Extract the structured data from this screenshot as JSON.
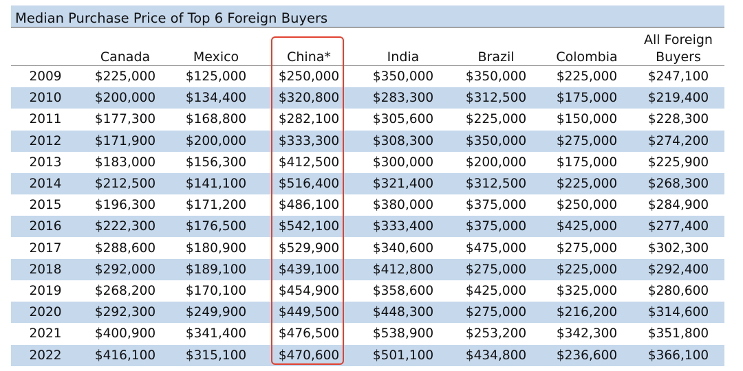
{
  "chart_data": {
    "type": "table",
    "title": "Median Purchase Price of Top 6 Foreign Buyers",
    "corner_label": "",
    "columns": [
      "Canada",
      "Mexico",
      "China*",
      "India",
      "Brazil",
      "Colombia",
      "All Foreign\nBuyers"
    ],
    "highlighted_column": "China*",
    "highlight_color": "#e2412f",
    "band_color": "#c5d8ec",
    "rows": [
      {
        "year": "2009",
        "values": [
          "$225,000",
          "$125,000",
          "$250,000",
          "$350,000",
          "$350,000",
          "$225,000",
          "$247,100"
        ]
      },
      {
        "year": "2010",
        "values": [
          "$200,000",
          "$134,400",
          "$320,800",
          "$283,300",
          "$312,500",
          "$175,000",
          "$219,400"
        ]
      },
      {
        "year": "2011",
        "values": [
          "$177,300",
          "$168,800",
          "$282,100",
          "$305,600",
          "$225,000",
          "$150,000",
          "$228,300"
        ]
      },
      {
        "year": "2012",
        "values": [
          "$171,900",
          "$200,000",
          "$333,300",
          "$308,300",
          "$350,000",
          "$275,000",
          "$274,200"
        ]
      },
      {
        "year": "2013",
        "values": [
          "$183,000",
          "$156,300",
          "$412,500",
          "$300,000",
          "$200,000",
          "$175,000",
          "$225,900"
        ]
      },
      {
        "year": "2014",
        "values": [
          "$212,500",
          "$141,100",
          "$516,400",
          "$321,400",
          "$312,500",
          "$225,000",
          "$268,300"
        ]
      },
      {
        "year": "2015",
        "values": [
          "$196,300",
          "$171,200",
          "$486,100",
          "$380,000",
          "$375,000",
          "$250,000",
          "$284,900"
        ]
      },
      {
        "year": "2016",
        "values": [
          "$222,300",
          "$176,500",
          "$542,100",
          "$333,400",
          "$375,000",
          "$425,000",
          "$277,400"
        ]
      },
      {
        "year": "2017",
        "values": [
          "$288,600",
          "$180,900",
          "$529,900",
          "$340,600",
          "$475,000",
          "$275,000",
          "$302,300"
        ]
      },
      {
        "year": "2018",
        "values": [
          "$292,000",
          "$189,100",
          "$439,100",
          "$412,800",
          "$275,000",
          "$225,000",
          "$292,400"
        ]
      },
      {
        "year": "2019",
        "values": [
          "$268,200",
          "$170,100",
          "$454,900",
          "$358,600",
          "$425,000",
          "$325,000",
          "$280,600"
        ]
      },
      {
        "year": "2020",
        "values": [
          "$292,300",
          "$249,900",
          "$449,500",
          "$448,300",
          "$275,000",
          "$216,200",
          "$314,600"
        ]
      },
      {
        "year": "2021",
        "values": [
          "$400,900",
          "$341,400",
          "$476,500",
          "$538,900",
          "$253,200",
          "$342,300",
          "$351,800"
        ]
      },
      {
        "year": "2022",
        "values": [
          "$416,100",
          "$315,100",
          "$470,600",
          "$501,100",
          "$434,800",
          "$236,600",
          "$366,100"
        ]
      }
    ]
  }
}
